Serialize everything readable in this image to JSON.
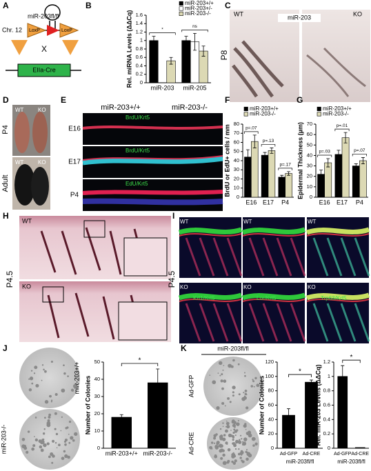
{
  "panels": {
    "A": {
      "letter": "A",
      "title": "miR-203fl/fl",
      "chromosome": "Chr. 12",
      "loxp": [
        "LoxP",
        "LoxP"
      ],
      "cross": "X",
      "cre": "EIIa-Cre"
    },
    "B": {
      "letter": "B"
    },
    "C": {
      "letter": "C",
      "left": "WT",
      "center": "miR-203",
      "right": "KO",
      "age": "P8"
    },
    "D": {
      "letter": "D",
      "ages": [
        "P4",
        "Adult"
      ],
      "top": [
        "WT",
        "KO"
      ],
      "bottom": [
        "WT",
        "KO"
      ]
    },
    "E": {
      "letter": "E",
      "columns": [
        "miR-203+/+",
        "miR-203-/-"
      ],
      "rows": [
        "E16",
        "E17",
        "P4"
      ],
      "stains": [
        "BrdU/Krt5",
        "BrdU/Krt5",
        "EdU/Krt5"
      ]
    },
    "F": {
      "letter": "F"
    },
    "G": {
      "letter": "G"
    },
    "H": {
      "letter": "H",
      "top": "WT",
      "bottom": "KO",
      "age": "P4.5"
    },
    "I": {
      "letter": "I",
      "top": [
        "WT",
        "WT",
        "WT"
      ],
      "bottom": [
        "KO",
        "KO",
        "KO"
      ],
      "age": "P4.5",
      "stains": [
        "Krt1/Krt5",
        "Lor/Krt5",
        "Trp63/Krt5"
      ]
    },
    "J": {
      "letter": "J",
      "rows": [
        "miR-203+/+",
        "miR-203-/-"
      ]
    },
    "K": {
      "letter": "K",
      "header": "miR-203fl/fl",
      "rows": [
        "Ad-GFP",
        "Ad-CRE"
      ]
    }
  },
  "chart_data": [
    {
      "type": "bar",
      "y_label": "Rel. miRNA Levels (ΔΔCq)",
      "categories": [
        "miR-203",
        "miR-205"
      ],
      "series": [
        {
          "name": "miR-203+/+",
          "color": "#000000",
          "values": [
            1.0,
            1.0
          ],
          "errors": [
            0.1,
            0.1
          ]
        },
        {
          "name": "miR-203+/-",
          "color": "#ffffff",
          "values": [
            null,
            0.97
          ],
          "errors": [
            null,
            0.2
          ]
        },
        {
          "name": "miR-203-/-",
          "color": "#dcd9b4",
          "values": [
            0.52,
            0.75
          ],
          "errors": [
            0.08,
            0.12
          ]
        }
      ],
      "ylim": [
        0,
        1.6
      ],
      "yticks": [
        0,
        0.2,
        0.4,
        0.6,
        0.8,
        1,
        1.2,
        1.4,
        1.6
      ],
      "legend": "top-right",
      "annotations": [
        "*",
        "ns"
      ]
    },
    {
      "type": "bar",
      "y_label": "BrdU or EdU+ cells / mm",
      "categories": [
        "E16",
        "E17",
        "P4"
      ],
      "series": [
        {
          "name": "miR-203+/+",
          "color": "#000000",
          "values": [
            44,
            46,
            22
          ],
          "errors": [
            8,
            3,
            2
          ]
        },
        {
          "name": "miR-203-/-",
          "color": "#dcd9b4",
          "values": [
            61,
            51,
            26
          ],
          "errors": [
            7,
            3,
            2
          ]
        }
      ],
      "ylim": [
        0,
        80
      ],
      "yticks": [
        0,
        10,
        20,
        30,
        40,
        50,
        60,
        70,
        80
      ],
      "legend": "top-left",
      "annotations": [
        "p=.07",
        "p=.13",
        "p=.17"
      ]
    },
    {
      "type": "bar",
      "y_label": "Epidermal Thickness (µm)",
      "categories": [
        "E16",
        "E17",
        "P4"
      ],
      "series": [
        {
          "name": "miR-203+/+",
          "color": "#000000",
          "values": [
            22,
            41,
            30
          ],
          "errors": [
            4,
            4,
            2
          ]
        },
        {
          "name": "miR-203-/-",
          "color": "#dcd9b4",
          "values": [
            33,
            57,
            35
          ],
          "errors": [
            4,
            5,
            3
          ]
        }
      ],
      "ylim": [
        0,
        70
      ],
      "yticks": [
        0,
        10,
        20,
        30,
        40,
        50,
        60,
        70
      ],
      "legend": "top-left",
      "annotations": [
        "p=.03",
        "p=.01",
        "p=.07"
      ]
    },
    {
      "type": "bar",
      "y_label": "Number of Colonies",
      "categories": [
        "miR-203+/+",
        "miR-203-/-"
      ],
      "values": [
        18,
        38
      ],
      "errors": [
        1.5,
        8
      ],
      "color": "#000000",
      "ylim": [
        0,
        50
      ],
      "yticks": [
        0,
        10,
        20,
        30,
        40,
        50
      ],
      "annotations": [
        "*"
      ]
    },
    {
      "type": "bar",
      "y_label": "Number of Colonies",
      "x_label": "miR-203fl/fl",
      "categories": [
        "Ad-GFP",
        "Ad-CRE"
      ],
      "values": [
        46,
        92
      ],
      "errors": [
        9,
        3
      ],
      "color": "#000000",
      "ylim": [
        0,
        120
      ],
      "yticks": [
        0,
        20,
        40,
        60,
        80,
        100,
        120
      ],
      "annotations": [
        "*"
      ]
    },
    {
      "type": "bar",
      "y_label": "Rel. miR-203 Levels (ΔΔCq)",
      "x_label": "miR-203fl/fl",
      "categories": [
        "Ad-GFP",
        "Ad-CRE"
      ],
      "values": [
        1.0,
        0.01
      ],
      "errors": [
        0.15,
        null
      ],
      "color": "#000000",
      "ylim": [
        0,
        1.2
      ],
      "yticks": [
        0,
        0.2,
        0.4,
        0.6,
        0.8,
        1,
        1.2
      ],
      "annotations": [
        "*"
      ]
    }
  ]
}
